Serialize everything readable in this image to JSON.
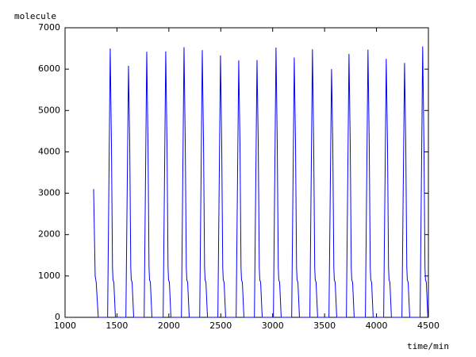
{
  "chart_data": {
    "type": "line",
    "y_label": "molecule",
    "x_label": "time/min",
    "x": [
      1275,
      1290,
      1300,
      1320,
      1410,
      1435,
      1447,
      1457,
      1462,
      1470,
      1485,
      1586,
      1611,
      1623,
      1633,
      1638,
      1646,
      1661,
      1762,
      1787,
      1799,
      1809,
      1814,
      1822,
      1837,
      1945,
      1970,
      1982,
      1992,
      1997,
      2005,
      2020,
      2121,
      2146,
      2158,
      2168,
      2173,
      2181,
      2196,
      2297,
      2322,
      2334,
      2344,
      2349,
      2357,
      2372,
      2472,
      2497,
      2509,
      2519,
      2524,
      2532,
      2547,
      2648,
      2673,
      2685,
      2695,
      2700,
      2708,
      2723,
      2824,
      2849,
      2861,
      2871,
      2876,
      2884,
      2899,
      3007,
      3032,
      3044,
      3054,
      3059,
      3067,
      3082,
      3183,
      3208,
      3220,
      3230,
      3235,
      3243,
      3258,
      3358,
      3383,
      3395,
      3405,
      3410,
      3418,
      3433,
      3542,
      3567,
      3579,
      3589,
      3594,
      3602,
      3617,
      3710,
      3735,
      3747,
      3757,
      3762,
      3770,
      3785,
      3893,
      3918,
      3930,
      3940,
      3945,
      3953,
      3968,
      4069,
      4094,
      4106,
      4116,
      4121,
      4129,
      4144,
      4245,
      4270,
      4282,
      4292,
      4297,
      4305,
      4320,
      4420,
      4445,
      4457,
      4467,
      4472,
      4480,
      4495
    ],
    "values": [
      3100,
      1000,
      850,
      0,
      0,
      6500,
      4200,
      1200,
      900,
      850,
      0,
      0,
      6080,
      4200,
      1200,
      900,
      850,
      0,
      0,
      6420,
      4200,
      1200,
      900,
      850,
      0,
      0,
      6430,
      4200,
      1200,
      900,
      850,
      0,
      0,
      6530,
      4200,
      1200,
      900,
      850,
      0,
      0,
      6460,
      4200,
      1200,
      900,
      850,
      0,
      0,
      6330,
      4200,
      1200,
      900,
      850,
      0,
      0,
      6210,
      4200,
      1200,
      900,
      850,
      0,
      0,
      6220,
      4200,
      1200,
      900,
      850,
      0,
      0,
      6520,
      4200,
      1200,
      900,
      850,
      0,
      0,
      6280,
      4200,
      1200,
      900,
      850,
      0,
      0,
      6480,
      4200,
      1200,
      900,
      850,
      0,
      0,
      6000,
      4200,
      1200,
      900,
      850,
      0,
      0,
      6370,
      4200,
      1200,
      900,
      850,
      0,
      0,
      6470,
      4200,
      1200,
      900,
      850,
      0,
      0,
      6250,
      4200,
      1200,
      900,
      850,
      0,
      0,
      6150,
      4200,
      1200,
      900,
      850,
      0,
      0,
      6550,
      4200,
      1200,
      900,
      850,
      0
    ],
    "color": "#0000ff",
    "xlim": [
      1000,
      4500
    ],
    "xticks": [
      1000,
      1500,
      2000,
      2500,
      3000,
      3500,
      4000,
      4500
    ],
    "ylim": [
      0,
      7000
    ],
    "yticks": [
      0,
      1000,
      2000,
      3000,
      4000,
      5000,
      6000,
      7000
    ]
  }
}
